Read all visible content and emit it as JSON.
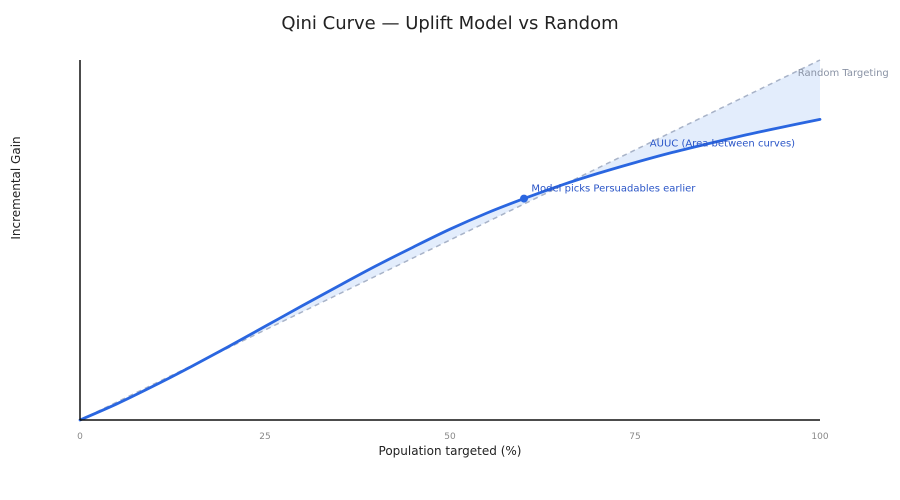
{
  "chart_data": {
    "type": "line",
    "title": "Qini Curve — Uplift Model vs Random",
    "xlabel": "Population targeted (%)",
    "ylabel": "Incremental Gain",
    "xlim": [
      0,
      100
    ],
    "ylim": [
      0,
      1
    ],
    "x_ticks": [
      "0",
      "25",
      "50",
      "75",
      "100"
    ],
    "x_tick_values": [
      0,
      25,
      50,
      75,
      100
    ],
    "grid": false,
    "colors": {
      "model": "#2a66e0",
      "random": "#a8b3c8",
      "area": "#dce9fb",
      "annotation_model": "#2a55c7",
      "annotation_random": "#8a93a5"
    },
    "series": [
      {
        "key": "random",
        "style": "dashed",
        "x": [
          0,
          100
        ],
        "y": [
          0,
          1
        ]
      },
      {
        "key": "model",
        "style": "solid",
        "x": [
          0,
          5,
          10,
          15,
          20,
          25,
          30,
          35,
          40,
          45,
          50,
          55,
          60,
          65,
          70,
          75,
          80,
          85,
          90,
          95,
          100
        ],
        "y": [
          0,
          0.045,
          0.095,
          0.148,
          0.203,
          0.26,
          0.317,
          0.373,
          0.428,
          0.48,
          0.53,
          0.575,
          0.615,
          0.652,
          0.685,
          0.715,
          0.743,
          0.768,
          0.792,
          0.814,
          0.835
        ]
      }
    ],
    "highlight_point": {
      "x": 60,
      "y": 0.615
    },
    "annotations": [
      {
        "key": "random",
        "text": "Random Targeting",
        "x": 97,
        "y": 0.955
      },
      {
        "key": "area",
        "text": "AUUC (Area between curves)",
        "x": 77,
        "y": 0.76
      },
      {
        "key": "point",
        "text": "Model picks Persuadables earlier",
        "x": 61,
        "y": 0.635
      }
    ]
  }
}
